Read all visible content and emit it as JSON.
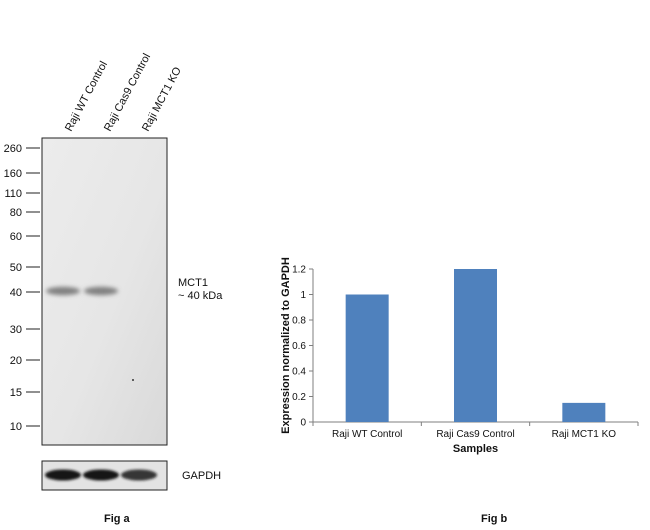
{
  "fig_a": {
    "lane_labels": [
      "Raji WT Control",
      "Raji Cas9 Control",
      "Raji MCT1 KO"
    ],
    "mw_markers": [
      "260",
      "160",
      "110",
      "80",
      "60",
      "50",
      "40",
      "30",
      "20",
      "15",
      "10"
    ],
    "band_label_line1": "MCT1",
    "band_label_line2": "~ 40 kDa",
    "loading_control_label": "GAPDH",
    "caption": "Fig a",
    "band_intensity": [
      1.0,
      1.0,
      0.0
    ],
    "gapdh_intensity": [
      1.0,
      1.0,
      0.85
    ]
  },
  "fig_b": {
    "caption": "Fig b"
  },
  "chart_data": {
    "type": "bar",
    "categories": [
      "Raji WT Control",
      "Raji Cas9 Control",
      "Raji MCT1 KO"
    ],
    "values": [
      1.0,
      1.2,
      0.15
    ],
    "xlabel": "Samples",
    "ylabel": "Expression  normalized to GAPDH",
    "ylim": [
      0,
      1.2
    ],
    "yticks": [
      "0",
      "0.2",
      "0.4",
      "0.6",
      "0.8",
      "1",
      "1.2"
    ],
    "bar_color": "#4f81bd",
    "grid": false
  }
}
